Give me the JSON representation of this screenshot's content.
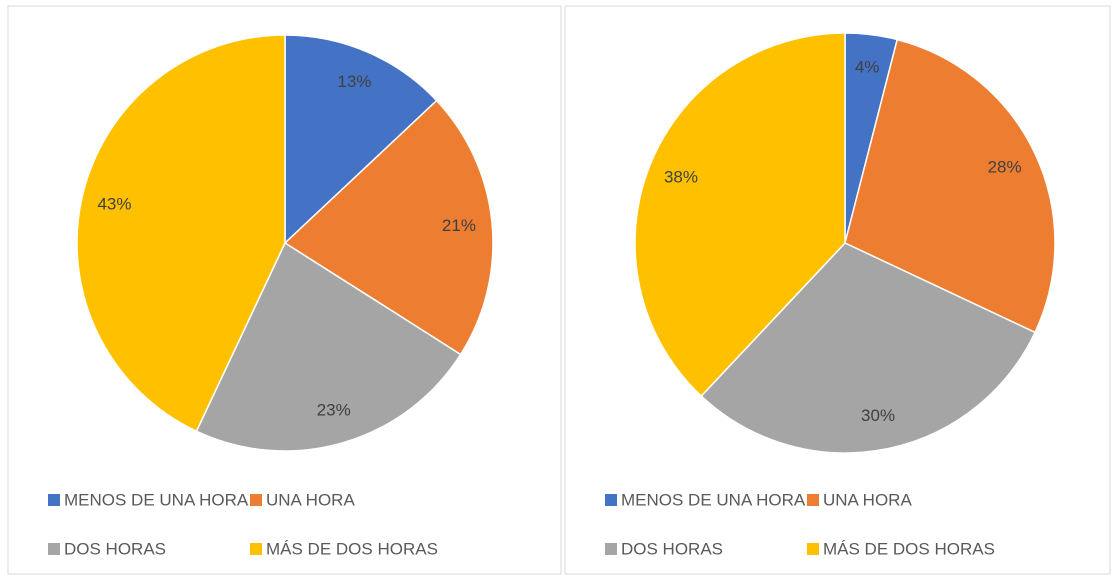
{
  "chart_data": [
    {
      "type": "pie",
      "categories": [
        "MENOS DE UNA HORA",
        "UNA HORA",
        "DOS HORAS",
        "MÁS DE DOS HORAS"
      ],
      "values": [
        13,
        21,
        23,
        43
      ],
      "value_labels": [
        "13%",
        "21%",
        "23%",
        "43%"
      ],
      "colors": [
        "#4472c4",
        "#ed7d31",
        "#a5a5a5",
        "#ffc000"
      ],
      "legend": "bottom"
    },
    {
      "type": "pie",
      "categories": [
        "MENOS DE UNA HORA",
        "UNA HORA",
        "DOS HORAS",
        "MÁS DE DOS HORAS"
      ],
      "values": [
        4,
        28,
        30,
        38
      ],
      "value_labels": [
        "4%",
        "28%",
        "30%",
        "38%"
      ],
      "colors": [
        "#4472c4",
        "#ed7d31",
        "#a5a5a5",
        "#ffc000"
      ],
      "legend": "bottom"
    }
  ]
}
